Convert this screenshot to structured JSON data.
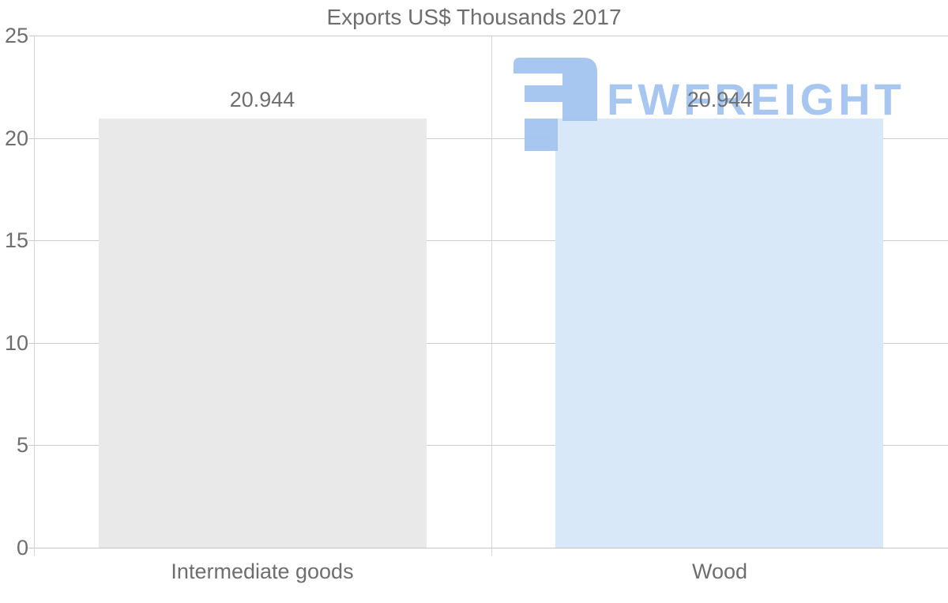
{
  "page": {
    "title": "Exports US$ Thousands 2017"
  },
  "chart_data": {
    "type": "bar",
    "title": "Exports US$ Thousands 2017",
    "categories": [
      "Intermediate goods",
      "Wood"
    ],
    "values": [
      20.944,
      20.944
    ],
    "value_labels": [
      "20.944",
      "20.944"
    ],
    "bar_colors": [
      "#e9e9e9",
      "#d8e8f9"
    ],
    "xlabel": "",
    "ylabel": "",
    "ylim": [
      0,
      25
    ],
    "yticks": [
      0,
      5,
      10,
      15,
      20,
      25
    ],
    "grid": true,
    "legend": "none"
  },
  "watermark": {
    "text": "FWFREIGHT",
    "icon": "fwfreight-logo-icon",
    "color": "#a4c5f0"
  },
  "colors": {
    "background": "#ffffff",
    "text": "#6e6e6e",
    "gridline": "#cccccc",
    "gridline_vertical": "#d6d6d6",
    "baseline": "#c4c4c4",
    "bar_gray": "#e9e9e9",
    "bar_blue": "#d8e8f9",
    "watermark_blue": "#a4c5f0"
  }
}
